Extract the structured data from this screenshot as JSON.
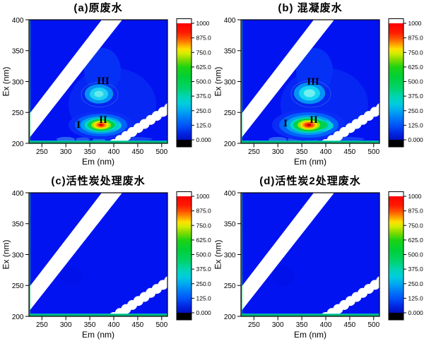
{
  "panels": [
    {
      "id": "a",
      "title": "(a)原废水",
      "region_labels": [
        "I",
        "II",
        "III"
      ]
    },
    {
      "id": "b",
      "title": "(b) 混凝废水",
      "region_labels": [
        "I",
        "II",
        "III"
      ]
    },
    {
      "id": "c",
      "title": "(c)活性炭处理废水",
      "region_labels": []
    },
    {
      "id": "d",
      "title": "(d)活性炭2处理废水",
      "region_labels": []
    }
  ],
  "axes": {
    "x_label": "Em (nm)",
    "y_label": "Ex (nm)",
    "x_tick_labels": [
      "250",
      "300",
      "350",
      "400",
      "450",
      "500"
    ],
    "y_tick_labels": [
      "400",
      "350",
      "300",
      "250",
      "200"
    ]
  },
  "colorbar": {
    "min": 0,
    "max": 1000,
    "tick_labels": [
      "1000",
      "875.0",
      "750.0",
      "625.0",
      "500.0",
      "375.0",
      "250.0",
      "125.0",
      "0.000"
    ],
    "above_max_color": "#ffffff",
    "below_min_color": "#000000",
    "gradient_stops": [
      [
        0.0,
        "#fb0000"
      ],
      [
        0.08,
        "#ff1c00"
      ],
      [
        0.13,
        "#ff5200"
      ],
      [
        0.18,
        "#ffa000"
      ],
      [
        0.22,
        "#ffe000"
      ],
      [
        0.26,
        "#d2ec00"
      ],
      [
        0.31,
        "#86dc00"
      ],
      [
        0.375,
        "#1ed312"
      ],
      [
        0.46,
        "#00cf38"
      ],
      [
        0.56,
        "#00d36e"
      ],
      [
        0.625,
        "#00d5b0"
      ],
      [
        0.69,
        "#00cddd"
      ],
      [
        0.75,
        "#00a9f0"
      ],
      [
        0.82,
        "#0077f7"
      ],
      [
        0.875,
        "#0055f8"
      ],
      [
        0.94,
        "#0028e6"
      ],
      [
        1.0,
        "#0010c0"
      ]
    ]
  },
  "colors": {
    "plot_background": "#0213f2",
    "scatter_band": "#ffffff",
    "frame": "#000000",
    "left_edge_band": "#00cf5f",
    "bottom_edge_band": "#00b87c",
    "bottom_edge_line": "#00dcc8"
  },
  "chart_data": [
    {
      "type": "heatmap",
      "title": "(a)原废水",
      "xlabel": "Em (nm)",
      "ylabel": "Ex (nm)",
      "x_range": [
        223,
        512
      ],
      "y_range": [
        200,
        400
      ],
      "color_scale_ticks": [
        0,
        125,
        250,
        375,
        500,
        625,
        750,
        875,
        1000
      ],
      "background_intensity": 75,
      "peaks": [
        {
          "label": "I",
          "em": 326,
          "ex": 232,
          "intensity": 850
        },
        {
          "label": "II",
          "em": 372,
          "ex": 230,
          "intensity": 1000
        },
        {
          "label": "III",
          "em": 369,
          "ex": 280,
          "intensity": 340
        }
      ],
      "masked_bands": [
        "first-order Rayleigh scatter (Em ~ Ex)",
        "second-order Rayleigh scatter (Em ~ 2Ex)"
      ]
    },
    {
      "type": "heatmap",
      "title": "(b) 混凝废水",
      "xlabel": "Em (nm)",
      "ylabel": "Ex (nm)",
      "x_range": [
        223,
        512
      ],
      "y_range": [
        200,
        400
      ],
      "color_scale_ticks": [
        0,
        125,
        250,
        375,
        500,
        625,
        750,
        875,
        1000
      ],
      "background_intensity": 75,
      "peaks": [
        {
          "label": "I",
          "em": 326,
          "ex": 232,
          "intensity": 900
        },
        {
          "label": "II",
          "em": 365,
          "ex": 230,
          "intensity": 1000
        },
        {
          "label": "III",
          "em": 366,
          "ex": 281,
          "intensity": 400
        }
      ],
      "masked_bands": [
        "first-order Rayleigh scatter (Em ~ Ex)",
        "second-order Rayleigh scatter (Em ~ 2Ex)"
      ]
    },
    {
      "type": "heatmap",
      "title": "(c)活性炭处理废水",
      "xlabel": "Em (nm)",
      "ylabel": "Ex (nm)",
      "x_range": [
        223,
        512
      ],
      "y_range": [
        200,
        400
      ],
      "color_scale_ticks": [
        0,
        125,
        250,
        375,
        500,
        625,
        750,
        875,
        1000
      ],
      "background_intensity": 70,
      "peaks": [],
      "masked_bands": [
        "first-order Rayleigh scatter (Em ~ Ex)",
        "second-order Rayleigh scatter (Em ~ 2Ex)"
      ]
    },
    {
      "type": "heatmap",
      "title": "(d)活性炭2处理废水",
      "xlabel": "Em (nm)",
      "ylabel": "Ex (nm)",
      "x_range": [
        223,
        512
      ],
      "y_range": [
        200,
        400
      ],
      "color_scale_ticks": [
        0,
        125,
        250,
        375,
        500,
        625,
        750,
        875,
        1000
      ],
      "background_intensity": 70,
      "peaks": [],
      "masked_bands": [
        "first-order Rayleigh scatter (Em ~ Ex)",
        "second-order Rayleigh scatter (Em ~ 2Ex)"
      ]
    }
  ]
}
